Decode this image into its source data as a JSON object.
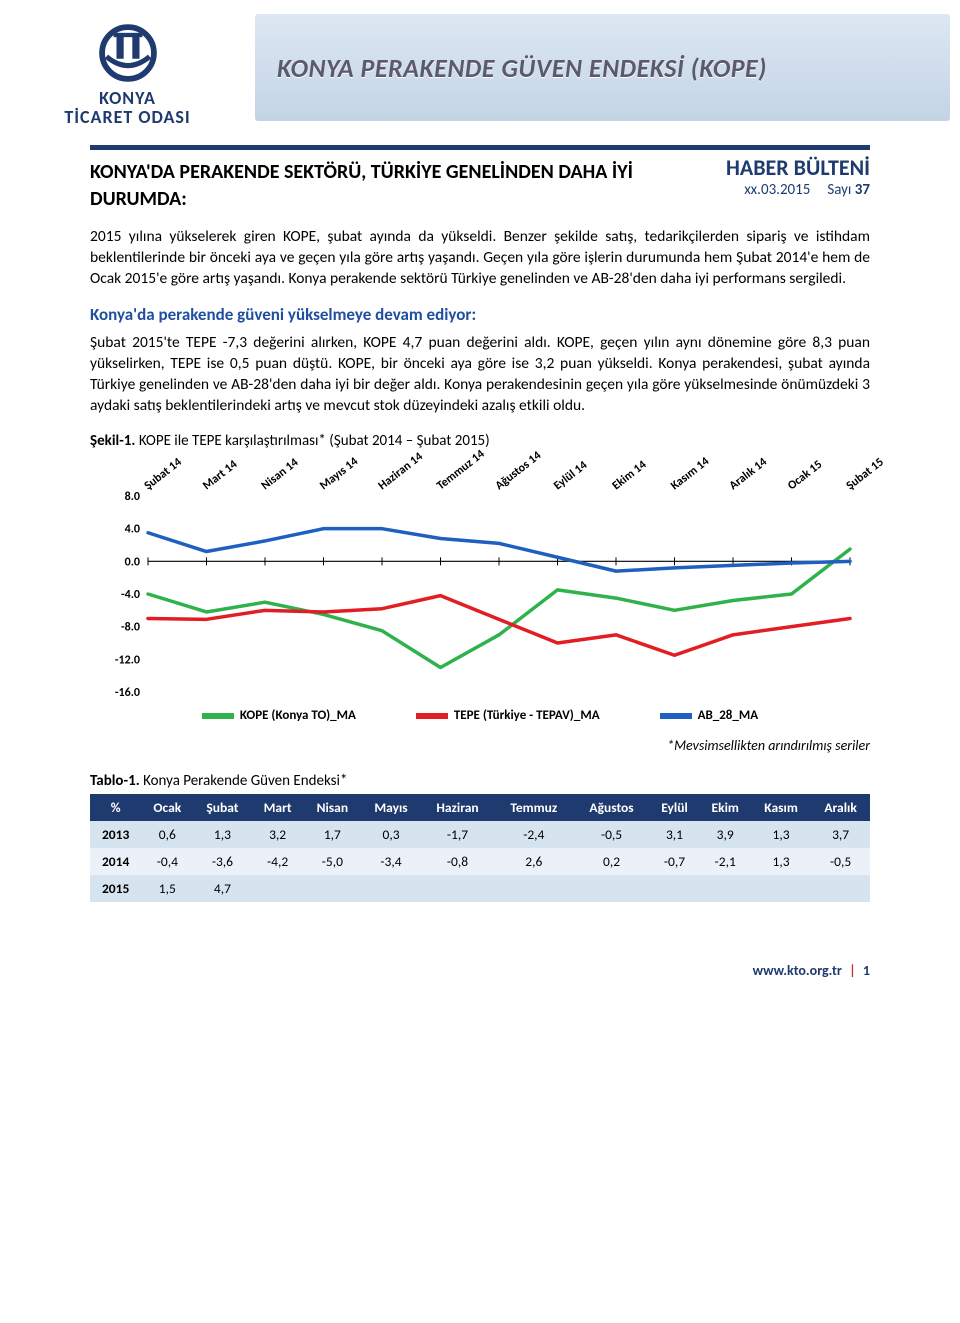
{
  "org": {
    "line1": "KONYA",
    "line2": "TİCARET ODASI"
  },
  "banner_title": "KONYA PERAKENDE GÜVEN ENDEKSİ (KOPE)",
  "newshead": {
    "title": "HABER BÜLTENİ",
    "date": "xx.03.2015",
    "issue_label": "Sayı",
    "issue_num": "37"
  },
  "headline": "KONYA'DA PERAKENDE SEKTÖRÜ, TÜRKİYE GENELİNDEN DAHA İYİ DURUMDA:",
  "para1": "2015 yılına yükselerek giren KOPE, şubat ayında da yükseldi. Benzer şekilde satış, tedarikçilerden sipariş ve istihdam beklentilerinde bir önceki aya ve geçen yıla göre artış yaşandı. Geçen yıla göre işlerin durumunda hem Şubat 2014'e hem de Ocak 2015'e göre artış yaşandı. Konya perakende sektörü Türkiye genelinden ve AB-28'den daha iyi performans sergiledi.",
  "subhead": "Konya'da perakende güveni yükselmeye devam ediyor:",
  "para2": "Şubat 2015'te TEPE -7,3 değerini alırken, KOPE 4,7 puan değerini aldı. KOPE, geçen yılın aynı dönemine göre 8,3 puan yükselirken, TEPE ise 0,5 puan düştü. KOPE, bir önceki aya göre ise 3,2 puan yükseldi. Konya perakendesi, şubat ayında Türkiye genelinden ve AB-28'den daha iyi bir değer aldı. Konya perakendesinin geçen yıla göre yükselmesinde önümüzdeki 3 aydaki satış beklentilerindeki artış ve mevcut stok düzeyindeki azalış etkili oldu.",
  "chart": {
    "caption_bold": "Şekil-1.",
    "caption_rest": " KOPE ile TEPE karşılaştırılması* (Şubat 2014 – Şubat 2015)",
    "x_labels": [
      "Şubat 14",
      "Mart 14",
      "Nisan 14",
      "Mayıs 14",
      "Haziran 14",
      "Temmuz 14",
      "Ağustos 14",
      "Eylül 14",
      "Ekim 14",
      "Kasım 14",
      "Aralık 14",
      "Ocak 15",
      "Şubat 15"
    ],
    "y_ticks": [
      8.0,
      4.0,
      0.0,
      -4.0,
      -8.0,
      -12.0,
      -16.0
    ],
    "ylim": [
      -16.0,
      8.0
    ],
    "series": {
      "kope": {
        "label": "KOPE (Konya TO)_MA",
        "color": "#2fb24c",
        "values": [
          -4.0,
          -6.2,
          -5.0,
          -6.5,
          -8.5,
          -13.0,
          -9.0,
          -3.5,
          -4.5,
          -6.0,
          -4.8,
          -4.0,
          1.5
        ]
      },
      "tepe": {
        "label": "TEPE (Türkiye - TEPAV)_MA",
        "color": "#e21d24",
        "values": [
          -7.0,
          -7.1,
          -6.0,
          -6.2,
          -5.8,
          -4.2,
          -7.1,
          -10.0,
          -9.0,
          -11.5,
          -9.0,
          -8.0,
          -7.0
        ]
      },
      "ab28": {
        "label": "AB_28_MA",
        "color": "#1f5fbf",
        "values": [
          3.5,
          1.2,
          2.5,
          4.0,
          4.0,
          2.8,
          2.2,
          0.5,
          -1.2,
          -0.8,
          -0.5,
          -0.2,
          0.0
        ]
      }
    },
    "line_width": 3.5,
    "plot_bg": "#ffffff",
    "axis_color": "#000000"
  },
  "footnote": "*Mevsimsellikten arındırılmış seriler",
  "table": {
    "caption_bold": "Tablo-1.",
    "caption_rest": " Konya Perakende Güven Endeksi*",
    "columns": [
      "%",
      "Ocak",
      "Şubat",
      "Mart",
      "Nisan",
      "Mayıs",
      "Haziran",
      "Temmuz",
      "Ağustos",
      "Eylül",
      "Ekim",
      "Kasım",
      "Aralık"
    ],
    "rows": [
      {
        "year": "2013",
        "vals": [
          "0,6",
          "1,3",
          "3,2",
          "1,7",
          "0,3",
          "-1,7",
          "-2,4",
          "-0,5",
          "3,1",
          "3,9",
          "1,3",
          "3,7"
        ]
      },
      {
        "year": "2014",
        "vals": [
          "-0,4",
          "-3,6",
          "-4,2",
          "-5,0",
          "-3,4",
          "-0,8",
          "2,6",
          "0,2",
          "-0,7",
          "-2,1",
          "1,3",
          "-0,5"
        ]
      },
      {
        "year": "2015",
        "vals": [
          "1,5",
          "4,7",
          "",
          "",
          "",
          "",
          "",
          "",
          "",
          "",
          "",
          ""
        ]
      }
    ],
    "header_bg": "#1f3a6e",
    "row_a_bg": "#d6e4f0",
    "row_b_bg": "#ecf1f9"
  },
  "footer": {
    "url": "www.kto.org.tr",
    "page": "1"
  }
}
